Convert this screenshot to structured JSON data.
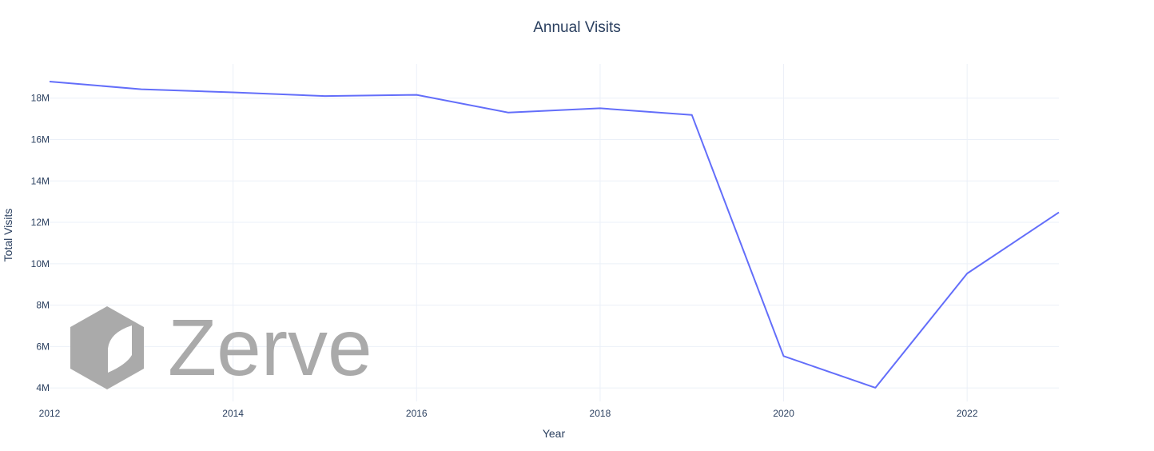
{
  "chart_data": {
    "type": "line",
    "title": "Annual Visits",
    "xlabel": "Year",
    "ylabel": "Total Visits",
    "x": [
      2012,
      2013,
      2014,
      2015,
      2016,
      2017,
      2018,
      2019,
      2020,
      2021,
      2022,
      2023
    ],
    "series": [
      {
        "values": [
          18800000,
          18430000,
          18280000,
          18100000,
          18160000,
          17300000,
          17510000,
          17190000,
          5540000,
          4010000,
          9530000,
          12480000
        ]
      }
    ],
    "xlim": [
      2012,
      2023
    ],
    "ylim": [
      3350000,
      19650000
    ],
    "x_ticks": [
      2012,
      2014,
      2016,
      2018,
      2020,
      2022
    ],
    "x_tick_labels": [
      "2012",
      "2014",
      "2016",
      "2018",
      "2020",
      "2022"
    ],
    "y_ticks": [
      4000000,
      6000000,
      8000000,
      10000000,
      12000000,
      14000000,
      16000000,
      18000000
    ],
    "y_tick_labels": [
      "4M",
      "6M",
      "8M",
      "10M",
      "12M",
      "14M",
      "16M",
      "18M"
    ],
    "grid": true,
    "legend": "none",
    "colors": {
      "line": "#636efa",
      "grid": "#ebf0f8",
      "text": "#2a3f5f",
      "watermark": "#aaaaaa"
    },
    "watermark": "Zerve"
  }
}
